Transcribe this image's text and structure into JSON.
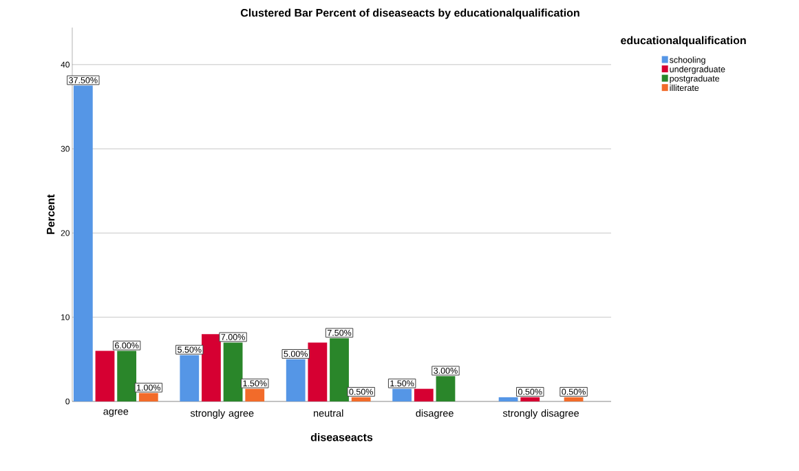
{
  "chart_data": {
    "type": "bar",
    "title": "Clustered Bar Percent of diseaseacts by educationalqualification",
    "xlabel": "diseaseacts",
    "ylabel": "Percent",
    "legend_title": "educationalqualification",
    "categories": [
      "agree",
      "strongly agree",
      "neutral",
      "disagree",
      "strongly disagree"
    ],
    "series": [
      {
        "name": "schooling",
        "color": "#5596e6",
        "values": [
          37.5,
          5.5,
          5,
          1.5,
          0.5
        ],
        "value_labels": [
          "37.50%",
          "5.50%",
          "5.00%",
          "1.50%",
          null
        ]
      },
      {
        "name": "undergraduate",
        "color": "#d60032",
        "values": [
          6,
          8,
          7,
          1.5,
          0.5
        ],
        "value_labels": [
          null,
          null,
          null,
          null,
          "0.50%"
        ]
      },
      {
        "name": "postgraduate",
        "color": "#2a862a",
        "values": [
          6,
          7,
          7.5,
          3,
          null
        ],
        "value_labels": [
          "6.00%",
          "7.00%",
          "7.50%",
          "3.00%",
          null
        ]
      },
      {
        "name": "illiterate",
        "color": "#f26b2a",
        "values": [
          1,
          1.5,
          0.5,
          null,
          0.5
        ],
        "value_labels": [
          "1.00%",
          "1.50%",
          "0.50%",
          null,
          "0.50%"
        ]
      }
    ],
    "ylim": [
      0,
      44.4
    ],
    "yticks": [
      0,
      10,
      20,
      30,
      40
    ],
    "grid": "y",
    "legend": "right"
  }
}
